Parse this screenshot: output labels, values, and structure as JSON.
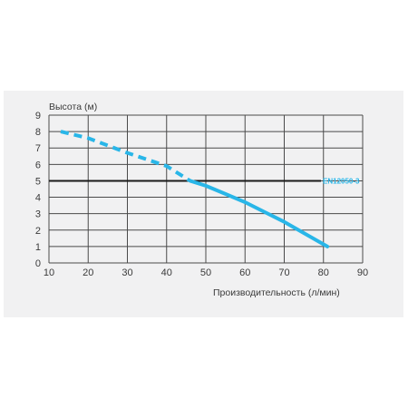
{
  "chart_data": {
    "type": "line",
    "ylabel": "Высота (м)",
    "xlabel": "Производительность (л/мин)",
    "xlim": [
      10,
      90
    ],
    "ylim": [
      0,
      9
    ],
    "x_ticks": [
      10,
      20,
      30,
      40,
      50,
      60,
      70,
      80,
      90
    ],
    "y_ticks": [
      0,
      1,
      2,
      3,
      4,
      5,
      6,
      7,
      8,
      9
    ],
    "grid": true,
    "colors": {
      "curve": "#29b6e8",
      "reference": "#1a1a1a",
      "grid": "#4a4a4a"
    },
    "series": [
      {
        "style": "dashed",
        "x": [
          13,
          20,
          30,
          40,
          46
        ],
        "y": [
          8,
          7.6,
          6.7,
          5.9,
          5.0
        ]
      },
      {
        "style": "solid",
        "x": [
          46,
          50,
          60,
          65,
          70,
          81
        ],
        "y": [
          5.0,
          4.7,
          3.7,
          3.1,
          2.5,
          1.0
        ]
      }
    ],
    "reference_line": {
      "y": 5,
      "label": "EN12050-3"
    }
  }
}
